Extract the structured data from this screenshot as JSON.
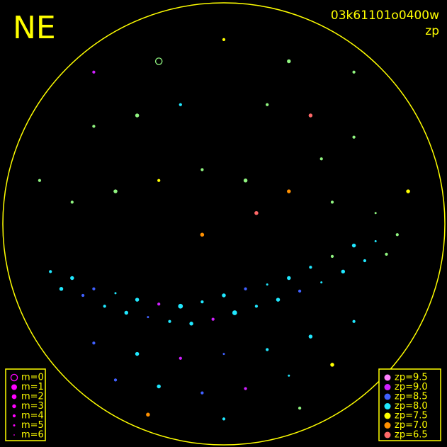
{
  "chart_data": {
    "type": "scatter",
    "title": "NE",
    "subtitle": "03k61101o0400w",
    "color_label": "zp",
    "xlim": [
      -1,
      1
    ],
    "ylim": [
      -1,
      1
    ],
    "x": [
      -0.8,
      -0.7,
      -0.6,
      -0.5,
      -0.4,
      -0.3,
      -0.2,
      -0.1,
      0,
      0.1,
      0.2,
      0.3,
      0.4,
      0.5,
      0.6,
      0.7,
      0.8,
      -0.75,
      -0.65,
      -0.55,
      -0.45,
      -0.35,
      -0.25,
      -0.15,
      -0.05,
      0.05,
      0.15,
      0.25,
      0.35,
      0.45,
      0.55,
      0.65,
      0.75,
      -0.6,
      -0.4,
      -0.2,
      0,
      0.2,
      0.4,
      0.6,
      -0.5,
      -0.3,
      -0.1,
      0.1,
      0.3,
      0.5,
      -0.35,
      0,
      0.35,
      -0.7,
      -0.5,
      -0.3,
      -0.1,
      0.1,
      0.3,
      0.5,
      0.7,
      -0.6,
      -0.4,
      -0.2,
      0.2,
      0.4,
      0.6,
      -0.3,
      0,
      0.3,
      -0.85,
      0.85,
      -0.1,
      0.15,
      0.6,
      -0.6,
      0.45
    ],
    "y": [
      -0.22,
      -0.25,
      -0.3,
      -0.32,
      -0.35,
      -0.37,
      -0.38,
      -0.36,
      -0.33,
      -0.3,
      -0.28,
      -0.25,
      -0.2,
      -0.15,
      -0.1,
      -0.08,
      -0.05,
      -0.3,
      -0.33,
      -0.38,
      -0.41,
      -0.43,
      -0.45,
      -0.46,
      -0.44,
      -0.41,
      -0.38,
      -0.35,
      -0.31,
      -0.27,
      -0.22,
      -0.17,
      -0.14,
      -0.55,
      -0.6,
      -0.62,
      -0.6,
      -0.58,
      -0.52,
      -0.45,
      -0.72,
      -0.75,
      -0.78,
      -0.76,
      -0.7,
      -0.65,
      -0.88,
      -0.9,
      -0.85,
      0.1,
      0.15,
      0.2,
      0.25,
      0.2,
      0.15,
      0.1,
      0.05,
      0.45,
      0.5,
      0.55,
      0.55,
      0.5,
      0.4,
      0.75,
      0.85,
      0.75,
      0.2,
      0.15,
      -0.05,
      0.05,
      0.7,
      0.7,
      0.3
    ],
    "m": [
      4,
      3,
      4,
      5,
      3,
      4,
      2,
      4,
      3,
      4,
      5,
      3,
      4,
      4,
      3,
      5,
      4,
      3,
      4,
      4,
      3,
      5,
      4,
      3,
      4,
      2,
      4,
      3,
      4,
      5,
      3,
      4,
      4,
      4,
      3,
      4,
      5,
      4,
      3,
      4,
      4,
      3,
      4,
      4,
      5,
      3,
      3,
      4,
      4,
      4,
      3,
      4,
      4,
      3,
      3,
      4,
      5,
      4,
      3,
      4,
      4,
      3,
      4,
      0,
      4,
      3,
      4,
      3,
      3,
      3,
      4,
      4,
      4
    ],
    "zp": [
      8.0,
      8.0,
      8.5,
      8.0,
      8.0,
      9.0,
      8.0,
      8.0,
      8.0,
      8.5,
      8.0,
      8.0,
      8.0,
      7.75,
      8.0,
      8.0,
      7.75,
      8.0,
      8.5,
      8.0,
      8.0,
      8.5,
      8.0,
      8.0,
      9.0,
      8.0,
      8.0,
      8.0,
      8.5,
      8.0,
      8.0,
      8.0,
      7.75,
      8.5,
      8.0,
      9.0,
      8.5,
      8.0,
      8.0,
      8.0,
      8.5,
      8.0,
      8.5,
      9.0,
      8.0,
      7.5,
      7.0,
      8.0,
      7.75,
      7.75,
      7.75,
      7.5,
      7.75,
      7.75,
      7.0,
      7.75,
      7.75,
      7.75,
      7.75,
      8.0,
      7.75,
      6.5,
      7.75,
      7.75,
      7.5,
      7.75,
      7.75,
      7.5,
      7.0,
      6.5,
      7.75,
      9.0,
      7.75
    ],
    "m_legend": [
      {
        "value": 0,
        "label": "m=0"
      },
      {
        "value": 1,
        "label": "m=1"
      },
      {
        "value": 2,
        "label": "m=2"
      },
      {
        "value": 3,
        "label": "m=3"
      },
      {
        "value": 4,
        "label": "m=4"
      },
      {
        "value": 5,
        "label": "m=5"
      },
      {
        "value": 6,
        "label": "m=6"
      }
    ],
    "zp_legend": [
      {
        "value": 9.5,
        "label": "zp=9.5",
        "color": "#ff80ff"
      },
      {
        "value": 9.0,
        "label": "zp=9.0",
        "color": "#d020ff"
      },
      {
        "value": 8.5,
        "label": "zp=8.5",
        "color": "#4060ff"
      },
      {
        "value": 8.0,
        "label": "zp=8.0",
        "color": "#20e8ff"
      },
      {
        "value": 7.5,
        "label": "zp=7.5",
        "color": "#ffff00"
      },
      {
        "value": 7.0,
        "label": "zp=7.0",
        "color": "#ff9000"
      },
      {
        "value": 6.5,
        "label": "zp=6.5",
        "color": "#ff6868"
      }
    ],
    "frame_color": "#ffff00",
    "m_legend_color": "#ff00ff"
  }
}
